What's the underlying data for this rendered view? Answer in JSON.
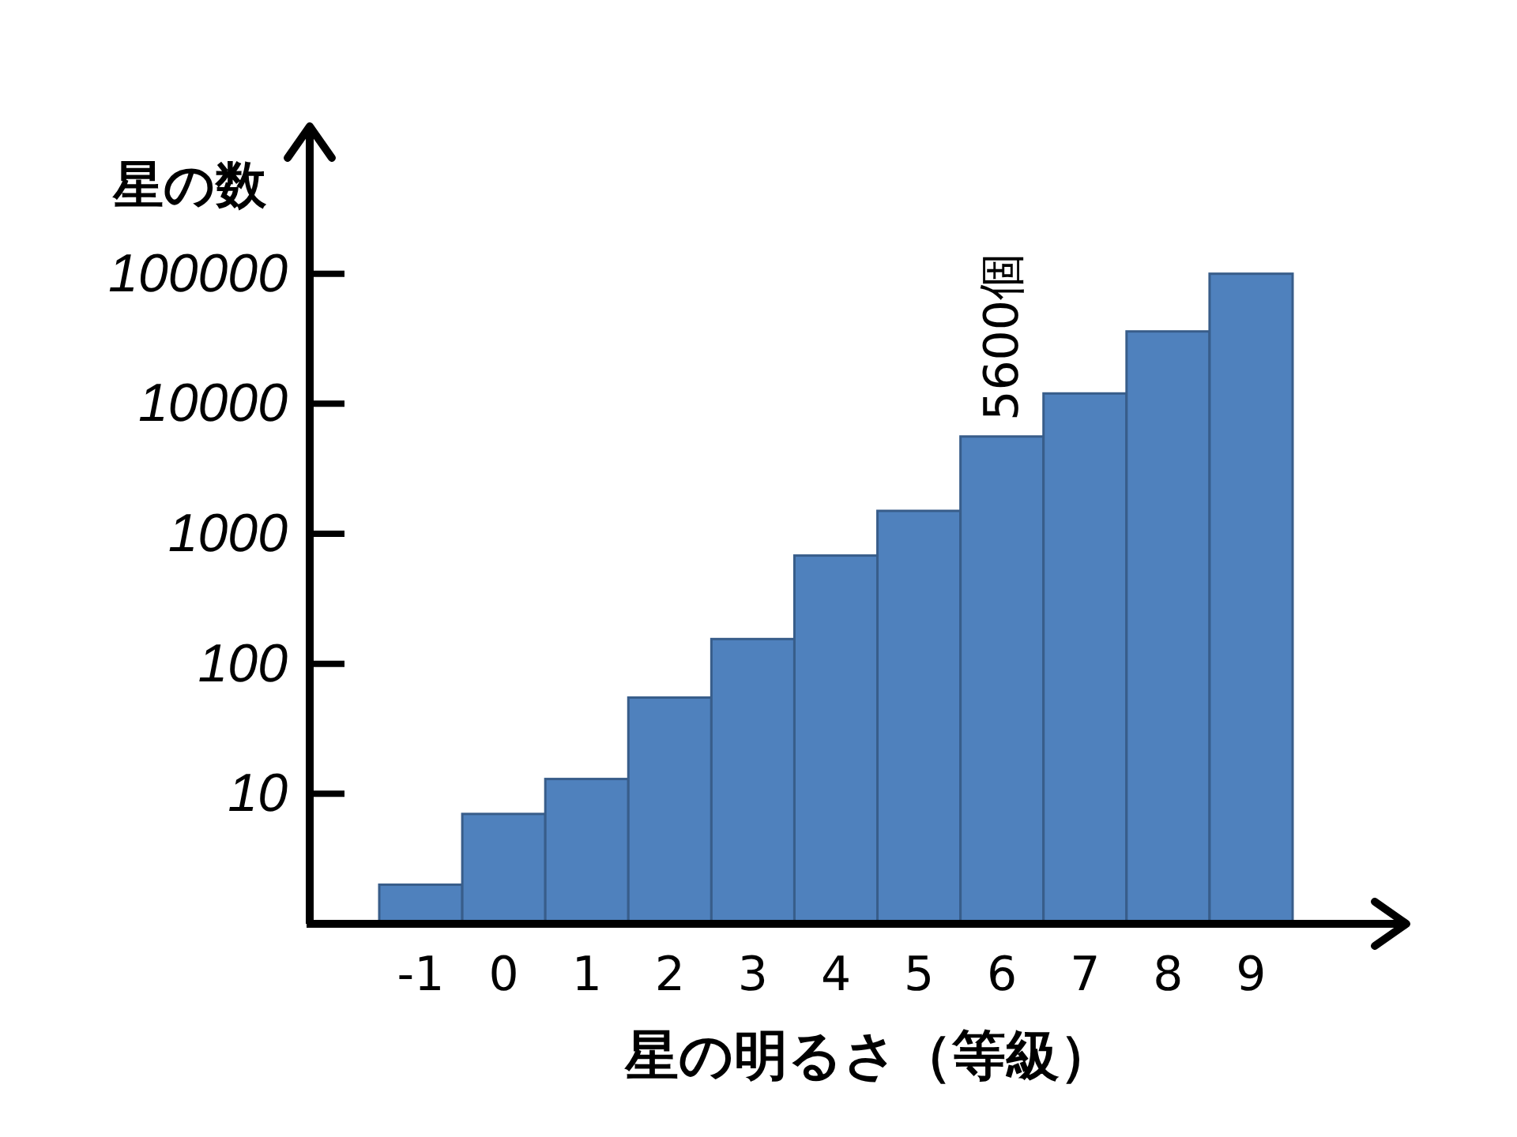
{
  "chart_data": {
    "type": "bar",
    "xlabel": "星の明るさ（等級）",
    "ylabel": "星の数",
    "categories": [
      "-1",
      "0",
      "1",
      "2",
      "3",
      "4",
      "5",
      "6",
      "7",
      "8",
      "9"
    ],
    "values": [
      2,
      7,
      13,
      55,
      155,
      680,
      1500,
      5600,
      12000,
      36000,
      100000
    ],
    "color": "#4f81bd",
    "log": true,
    "ylim": [
      1,
      1000000
    ],
    "yticks": [
      10,
      100,
      1000,
      10000,
      100000
    ],
    "grid": false,
    "annotations": [
      {
        "text": "5600個",
        "x": "6",
        "y": 5600
      }
    ]
  }
}
